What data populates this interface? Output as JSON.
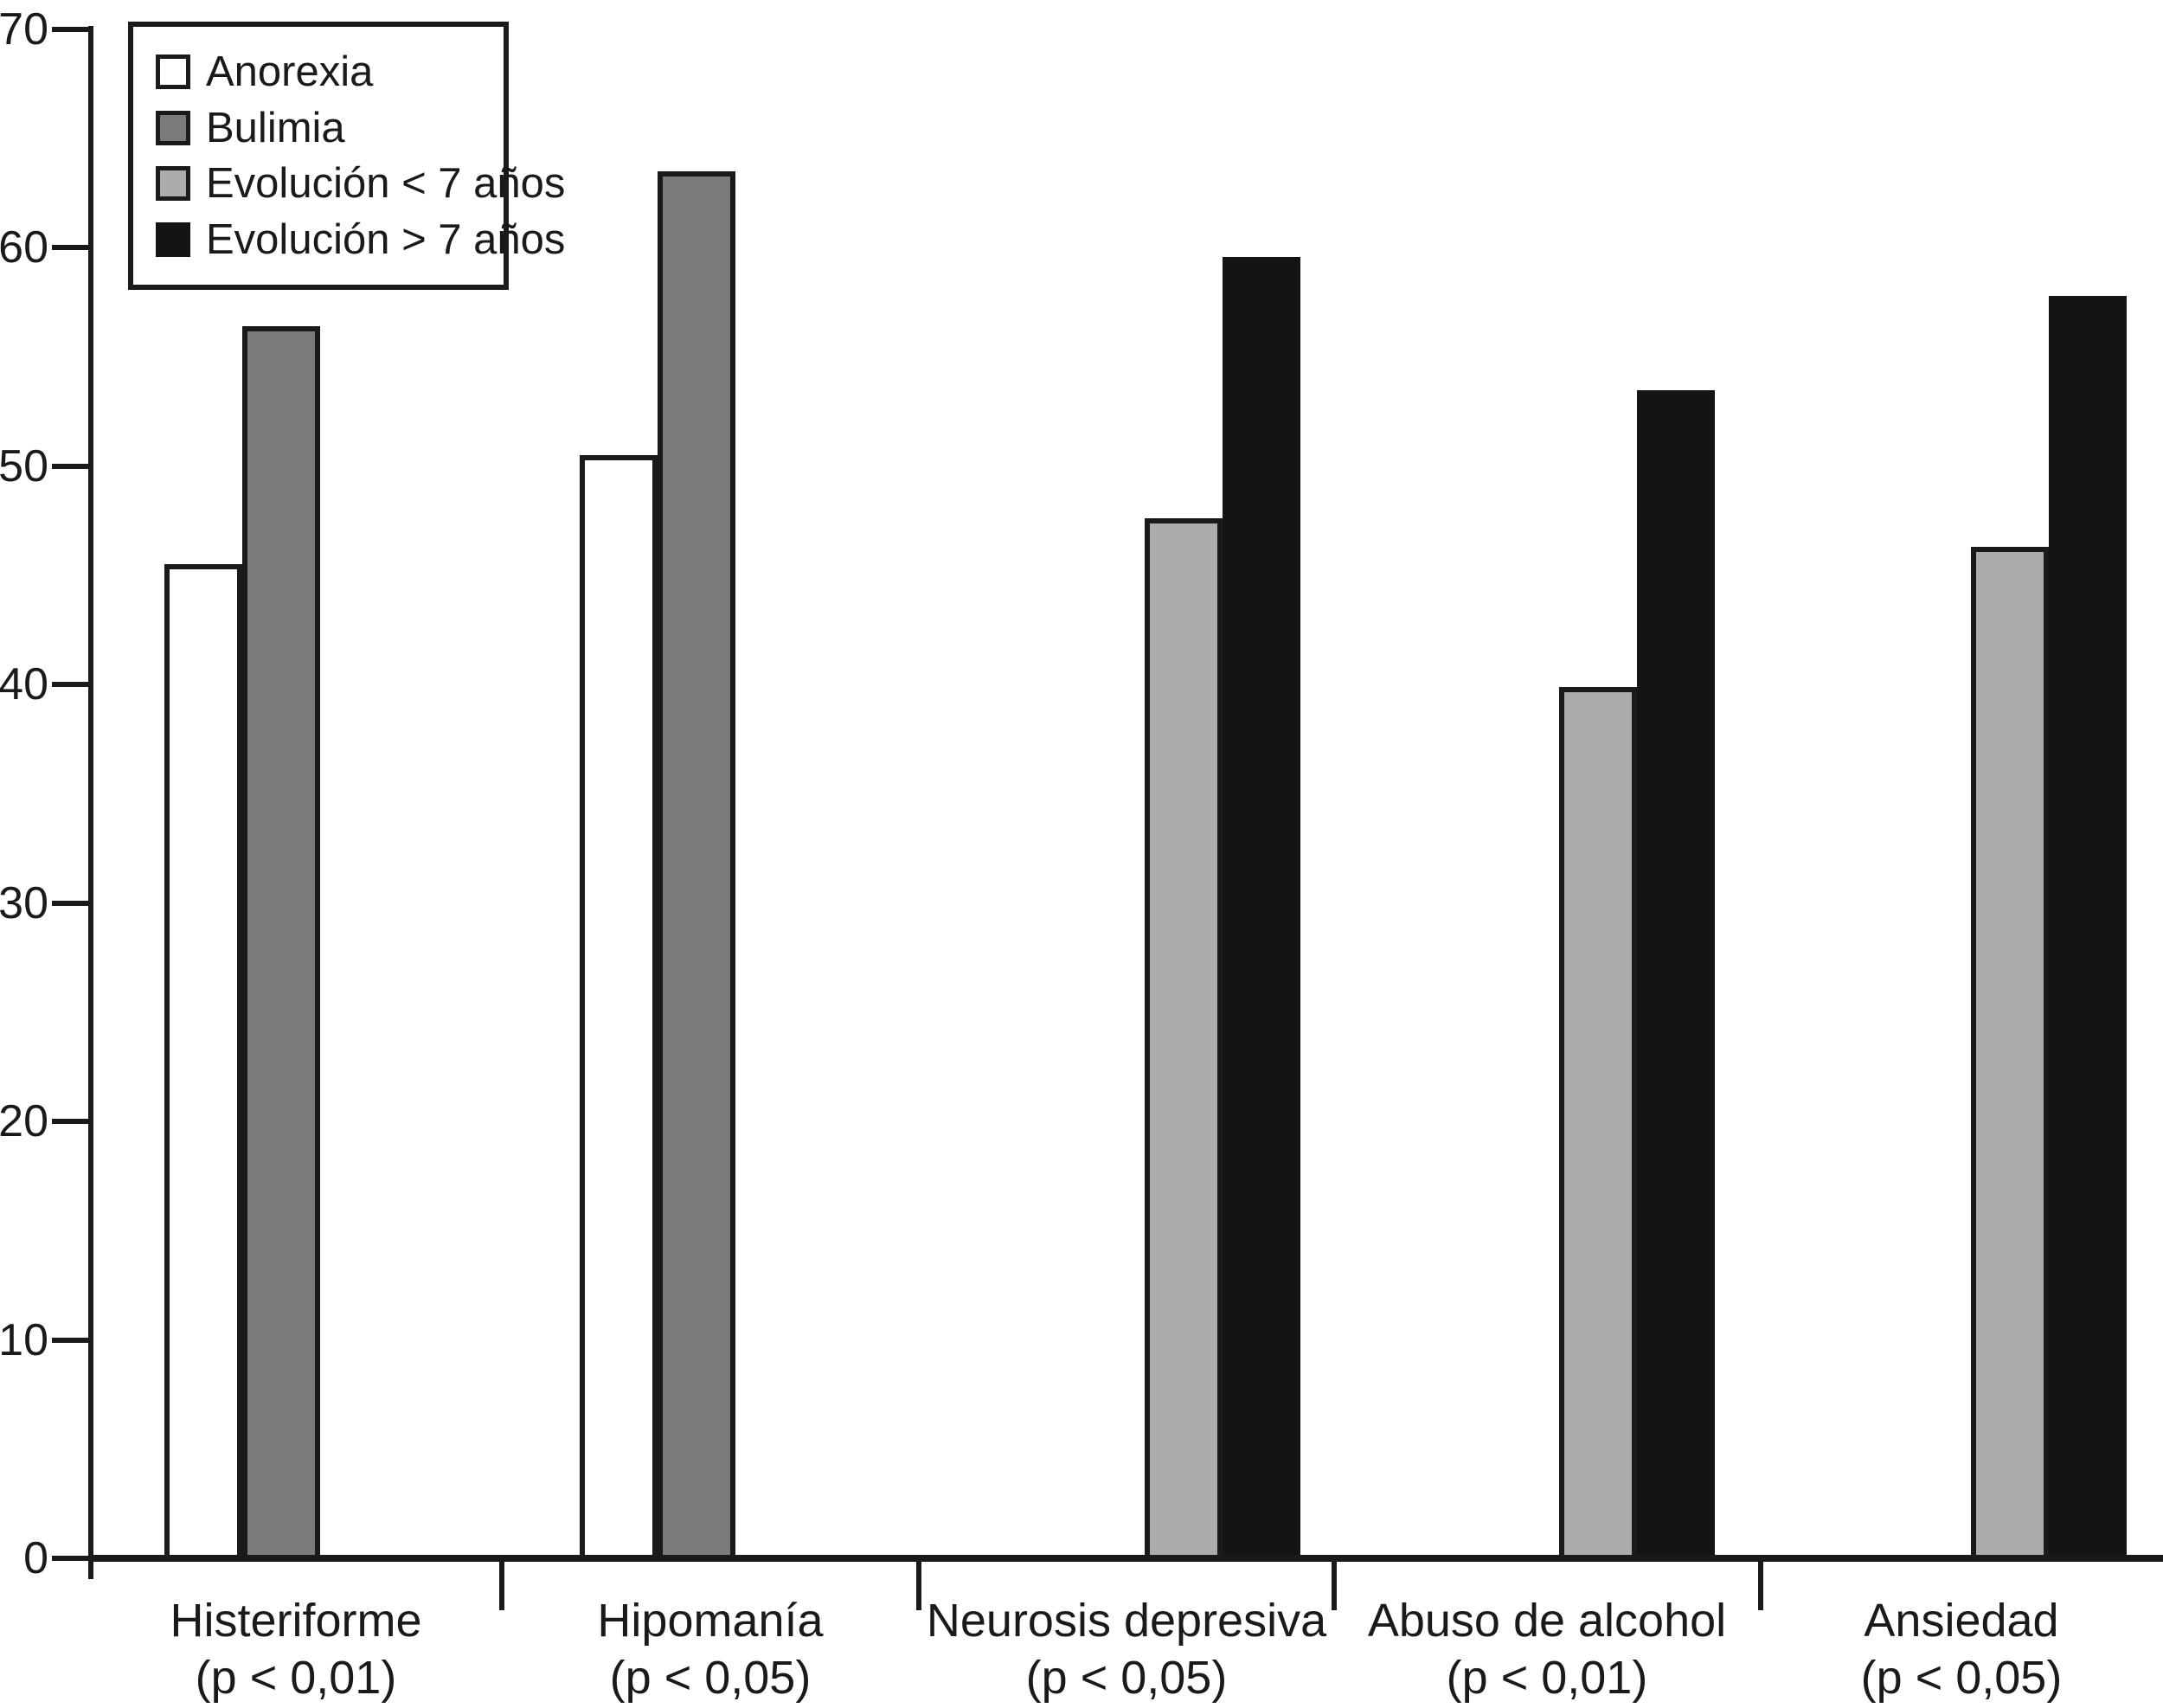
{
  "chart_data": {
    "type": "bar",
    "title": "",
    "xlabel": "",
    "ylabel": "",
    "ylim": [
      0,
      70
    ],
    "yticks": [
      0,
      10,
      20,
      30,
      40,
      50,
      60,
      70
    ],
    "grid": false,
    "legend_position": "top-left",
    "categories": [
      {
        "name": "Histeriforme",
        "pvalue": "(p < 0,01)"
      },
      {
        "name": "Hipomanía",
        "pvalue": "(p < 0,05)"
      },
      {
        "name": "Neurosis depresiva",
        "pvalue": "(p < 0,05)"
      },
      {
        "name": "Abuso de alcohol",
        "pvalue": "(p < 0,01)"
      },
      {
        "name": "Ansiedad",
        "pvalue": "(p < 0,05)"
      }
    ],
    "series": [
      {
        "name": "Anorexia",
        "color": "#ffffff",
        "border": "#1a1a1a",
        "values": [
          45.5,
          50.5,
          null,
          null,
          null
        ]
      },
      {
        "name": "Bulimia",
        "color": "#7b7b7b",
        "border": "#1a1a1a",
        "values": [
          56.4,
          63.5,
          null,
          null,
          null
        ]
      },
      {
        "name": "Evolución < 7 años",
        "color": "#ababab",
        "border": "#1a1a1a",
        "values": [
          null,
          null,
          47.6,
          39.9,
          46.3
        ]
      },
      {
        "name": "Evolución > 7 años",
        "color": "#141414",
        "border": "#141414",
        "values": [
          null,
          null,
          59.6,
          53.5,
          57.8
        ]
      }
    ]
  }
}
